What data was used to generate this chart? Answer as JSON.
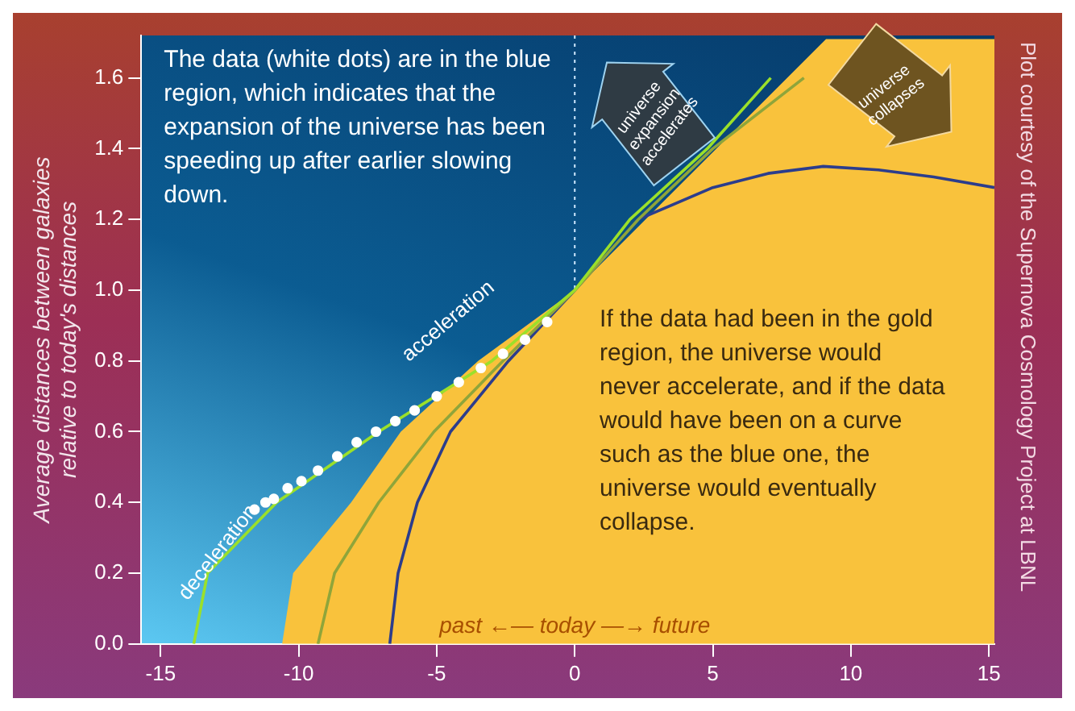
{
  "chart_data": {
    "type": "line",
    "ylabel": "Average distances between galaxies\nrelative to today's distances",
    "xlim": [
      -15.7,
      15.2
    ],
    "xticks": [
      -15,
      -10,
      -5,
      0,
      5,
      10,
      15
    ],
    "ylim": [
      0,
      1.72
    ],
    "yticks": [
      {
        "value": 0,
        "label": "0.0"
      },
      {
        "value": 0.2,
        "label": "0.2"
      },
      {
        "value": 0.4,
        "label": "0.4"
      },
      {
        "value": 0.6,
        "label": "0.6"
      },
      {
        "value": 0.8,
        "label": "0.8"
      },
      {
        "value": 1,
        "label": "1.0"
      },
      {
        "value": 1.2,
        "label": "1.2"
      },
      {
        "value": 1.4,
        "label": "1.4"
      },
      {
        "value": 1.6,
        "label": "1.6"
      }
    ],
    "grid": false,
    "legend": false,
    "series": [
      {
        "type": "area",
        "color": "#f9c23c",
        "x": [
          -10.6,
          -10.2,
          -8.1,
          -6.3,
          -3.5,
          0,
          9.1,
          15.2
        ],
        "values": [
          0,
          0.2,
          0.4,
          0.6,
          0.8,
          1,
          1.71,
          1.71
        ]
      },
      {
        "type": "line",
        "color": "#9be02a",
        "x": [
          -13.8,
          -13.3,
          -10.8,
          -7.1,
          -3,
          0,
          2,
          4.8,
          7.1
        ],
        "values": [
          0,
          0.2,
          0.4,
          0.6,
          0.8,
          1,
          1.2,
          1.4,
          1.6
        ]
      },
      {
        "type": "line",
        "color": "#8fa53a",
        "x": [
          -9.3,
          -8.7,
          -7.1,
          -5.1,
          -2.6,
          0,
          2.3,
          5,
          8.3
        ],
        "values": [
          0,
          0.2,
          0.4,
          0.6,
          0.8,
          1,
          1.2,
          1.4,
          1.6
        ]
      },
      {
        "type": "line",
        "color": "#2c3d8c",
        "x": [
          -6.7,
          -6.4,
          -5.7,
          -4.5,
          -2.4,
          0,
          2.3,
          5,
          7,
          9,
          11,
          13,
          15.2
        ],
        "values": [
          0,
          0.2,
          0.4,
          0.6,
          0.8,
          1,
          1.2,
          1.29,
          1.33,
          1.35,
          1.34,
          1.32,
          1.29
        ]
      },
      {
        "type": "scatter",
        "color": "#ffffff",
        "marker": "circle",
        "x": [
          -11.6,
          -11.2,
          -10.9,
          -10.4,
          -9.9,
          -9.3,
          -8.6,
          -7.9,
          -7.2,
          -6.5,
          -5.8,
          -5,
          -4.2,
          -3.4,
          -2.6,
          -1.8,
          -1
        ],
        "values": [
          0.38,
          0.4,
          0.41,
          0.44,
          0.46,
          0.49,
          0.53,
          0.57,
          0.6,
          0.63,
          0.66,
          0.7,
          0.74,
          0.78,
          0.82,
          0.86,
          0.91
        ]
      }
    ],
    "ref_lines": [
      {
        "axis": "x",
        "value": 0,
        "color": "#cfe8ff",
        "line_style": "dotted"
      }
    ],
    "annotations": [
      "The data (white dots) are in the blue region, which indicates that the expansion of the universe has been speeding up after earlier slowing down.",
      "If the data had been in the gold region, the universe would never accelerate, and if the data would have been on a curve such as the blue one, the universe would eventually collapse.",
      "Plot courtesy of the Supernova Cosmology Project at LBNL",
      "universe expansion accelerates",
      "universe collapses",
      "deceleration",
      "acceleration",
      "past ←— today —→ future"
    ]
  }
}
